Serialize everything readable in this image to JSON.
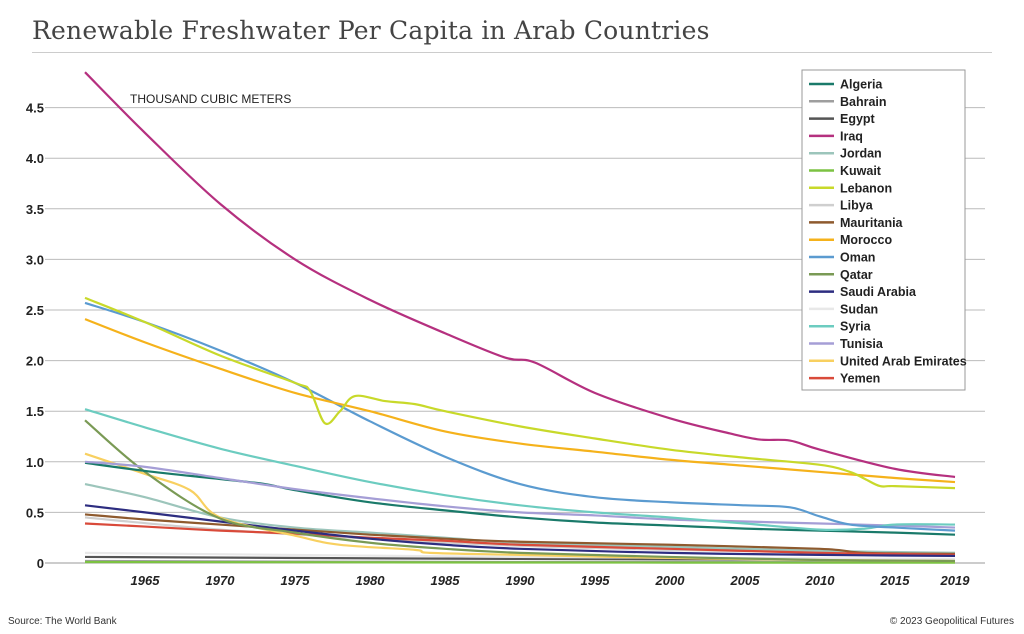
{
  "title": "Renewable Freshwater Per Capita in Arab Countries",
  "source": "Source: The World Bank",
  "copyright": "© 2023 Geopolitical Futures",
  "chart_data": {
    "type": "line",
    "title": "Renewable Freshwater Per Capita in Arab Countries",
    "ylabel": "THOUSAND CUBIC METERS",
    "xlabel": "",
    "xlim": [
      1961,
      2019
    ],
    "ylim": [
      0,
      4.9
    ],
    "x_ticks": [
      "1965",
      "1970",
      "1975",
      "1980",
      "1985",
      "1990",
      "1995",
      "2000",
      "2005",
      "2010",
      "2015",
      "2019"
    ],
    "y_ticks": [
      "0",
      "0.5",
      "1.0",
      "1.5",
      "2.0",
      "2.5",
      "3.0",
      "3.5",
      "4.0",
      "4.5"
    ],
    "grid": true,
    "legend": "top-right",
    "series": [
      {
        "name": "Algeria",
        "color": "#1a7a6a",
        "points": [
          [
            1961,
            0.99
          ],
          [
            1965,
            0.91
          ],
          [
            1970,
            0.83
          ],
          [
            1973,
            0.78
          ],
          [
            1975,
            0.72
          ],
          [
            1980,
            0.6
          ],
          [
            1985,
            0.52
          ],
          [
            1990,
            0.45
          ],
          [
            1995,
            0.4
          ],
          [
            2000,
            0.37
          ],
          [
            2005,
            0.34
          ],
          [
            2010,
            0.32
          ],
          [
            2015,
            0.3
          ],
          [
            2019,
            0.28
          ]
        ]
      },
      {
        "name": "Bahrain",
        "color": "#9e9e9e",
        "points": [
          [
            1961,
            0.02
          ],
          [
            1990,
            0.01
          ],
          [
            2019,
            0.01
          ]
        ]
      },
      {
        "name": "Egypt",
        "color": "#555555",
        "points": [
          [
            1961,
            0.06
          ],
          [
            1990,
            0.04
          ],
          [
            2019,
            0.03
          ]
        ]
      },
      {
        "name": "Iraq",
        "color": "#b5307f",
        "points": [
          [
            1961,
            4.85
          ],
          [
            1965,
            4.25
          ],
          [
            1970,
            3.55
          ],
          [
            1975,
            3.0
          ],
          [
            1980,
            2.6
          ],
          [
            1985,
            2.27
          ],
          [
            1989,
            2.03
          ],
          [
            1991,
            1.98
          ],
          [
            1995,
            1.68
          ],
          [
            2000,
            1.43
          ],
          [
            2004,
            1.28
          ],
          [
            2006,
            1.22
          ],
          [
            2008,
            1.21
          ],
          [
            2010,
            1.12
          ],
          [
            2015,
            0.93
          ],
          [
            2019,
            0.85
          ]
        ]
      },
      {
        "name": "Jordan",
        "color": "#9cc5bb",
        "points": [
          [
            1961,
            0.78
          ],
          [
            1965,
            0.65
          ],
          [
            1970,
            0.45
          ],
          [
            1975,
            0.35
          ],
          [
            1980,
            0.3
          ],
          [
            1985,
            0.25
          ],
          [
            1990,
            0.2
          ],
          [
            2000,
            0.16
          ],
          [
            2010,
            0.12
          ],
          [
            2019,
            0.1
          ]
        ]
      },
      {
        "name": "Kuwait",
        "color": "#7cc242",
        "points": [
          [
            1961,
            0.01
          ],
          [
            1990,
            0.005
          ],
          [
            2019,
            0.003
          ]
        ]
      },
      {
        "name": "Lebanon",
        "color": "#c8d92a",
        "points": [
          [
            1961,
            2.62
          ],
          [
            1965,
            2.38
          ],
          [
            1970,
            2.05
          ],
          [
            1975,
            1.78
          ],
          [
            1976,
            1.7
          ],
          [
            1977,
            1.38
          ],
          [
            1978,
            1.5
          ],
          [
            1979,
            1.65
          ],
          [
            1981,
            1.6
          ],
          [
            1983,
            1.57
          ],
          [
            1985,
            1.5
          ],
          [
            1990,
            1.35
          ],
          [
            1995,
            1.23
          ],
          [
            2000,
            1.12
          ],
          [
            2005,
            1.04
          ],
          [
            2010,
            0.97
          ],
          [
            2012,
            0.9
          ],
          [
            2013,
            0.83
          ],
          [
            2014,
            0.76
          ],
          [
            2015,
            0.76
          ],
          [
            2019,
            0.74
          ]
        ]
      },
      {
        "name": "Libya",
        "color": "#cfcfcf",
        "points": [
          [
            1961,
            0.45
          ],
          [
            1970,
            0.33
          ],
          [
            1980,
            0.24
          ],
          [
            1990,
            0.17
          ],
          [
            2000,
            0.13
          ],
          [
            2010,
            0.11
          ],
          [
            2019,
            0.1
          ]
        ]
      },
      {
        "name": "Mauritania",
        "color": "#8e5a2e",
        "points": [
          [
            1961,
            0.48
          ],
          [
            1965,
            0.43
          ],
          [
            1970,
            0.38
          ],
          [
            1975,
            0.33
          ],
          [
            1980,
            0.28
          ],
          [
            1985,
            0.24
          ],
          [
            1990,
            0.21
          ],
          [
            2000,
            0.18
          ],
          [
            2010,
            0.14
          ],
          [
            2013,
            0.1
          ],
          [
            2019,
            0.09
          ]
        ]
      },
      {
        "name": "Morocco",
        "color": "#f5b21b",
        "points": [
          [
            1961,
            2.41
          ],
          [
            1965,
            2.18
          ],
          [
            1970,
            1.92
          ],
          [
            1975,
            1.68
          ],
          [
            1980,
            1.5
          ],
          [
            1985,
            1.3
          ],
          [
            1990,
            1.18
          ],
          [
            1995,
            1.1
          ],
          [
            2000,
            1.02
          ],
          [
            2005,
            0.96
          ],
          [
            2010,
            0.9
          ],
          [
            2015,
            0.84
          ],
          [
            2019,
            0.8
          ]
        ]
      },
      {
        "name": "Oman",
        "color": "#5b9bd0",
        "points": [
          [
            1961,
            2.57
          ],
          [
            1965,
            2.38
          ],
          [
            1970,
            2.1
          ],
          [
            1975,
            1.78
          ],
          [
            1980,
            1.4
          ],
          [
            1985,
            1.05
          ],
          [
            1990,
            0.78
          ],
          [
            1995,
            0.65
          ],
          [
            2000,
            0.6
          ],
          [
            2005,
            0.57
          ],
          [
            2008,
            0.55
          ],
          [
            2010,
            0.46
          ],
          [
            2012,
            0.38
          ],
          [
            2015,
            0.35
          ],
          [
            2019,
            0.32
          ]
        ]
      },
      {
        "name": "Qatar",
        "color": "#7a9a55",
        "points": [
          [
            1961,
            1.41
          ],
          [
            1965,
            0.9
          ],
          [
            1970,
            0.44
          ],
          [
            1975,
            0.3
          ],
          [
            1980,
            0.2
          ],
          [
            1985,
            0.14
          ],
          [
            1990,
            0.1
          ],
          [
            2000,
            0.06
          ],
          [
            2010,
            0.03
          ],
          [
            2019,
            0.02
          ]
        ]
      },
      {
        "name": "Saudi Arabia",
        "color": "#2d2d80",
        "points": [
          [
            1961,
            0.57
          ],
          [
            1965,
            0.5
          ],
          [
            1970,
            0.41
          ],
          [
            1975,
            0.32
          ],
          [
            1980,
            0.24
          ],
          [
            1985,
            0.18
          ],
          [
            1990,
            0.14
          ],
          [
            2000,
            0.1
          ],
          [
            2010,
            0.08
          ],
          [
            2019,
            0.07
          ]
        ]
      },
      {
        "name": "Sudan",
        "color": "#e8e8e8",
        "points": [
          [
            1961,
            0.1
          ],
          [
            1990,
            0.06
          ],
          [
            2019,
            0.04
          ]
        ]
      },
      {
        "name": "Syria",
        "color": "#6cccc0",
        "points": [
          [
            1961,
            1.52
          ],
          [
            1965,
            1.34
          ],
          [
            1970,
            1.13
          ],
          [
            1975,
            0.96
          ],
          [
            1980,
            0.8
          ],
          [
            1985,
            0.67
          ],
          [
            1990,
            0.57
          ],
          [
            1995,
            0.5
          ],
          [
            2000,
            0.45
          ],
          [
            2005,
            0.39
          ],
          [
            2010,
            0.33
          ],
          [
            2013,
            0.34
          ],
          [
            2015,
            0.38
          ],
          [
            2019,
            0.38
          ]
        ]
      },
      {
        "name": "Tunisia",
        "color": "#a59ed6",
        "points": [
          [
            1961,
            1.0
          ],
          [
            1965,
            0.95
          ],
          [
            1970,
            0.84
          ],
          [
            1975,
            0.73
          ],
          [
            1980,
            0.64
          ],
          [
            1985,
            0.56
          ],
          [
            1990,
            0.5
          ],
          [
            1995,
            0.47
          ],
          [
            2000,
            0.43
          ],
          [
            2005,
            0.41
          ],
          [
            2010,
            0.39
          ],
          [
            2015,
            0.37
          ],
          [
            2019,
            0.35
          ]
        ]
      },
      {
        "name": "United Arab Emirates",
        "color": "#f8d060",
        "points": [
          [
            1961,
            1.08
          ],
          [
            1965,
            0.88
          ],
          [
            1968,
            0.72
          ],
          [
            1970,
            0.45
          ],
          [
            1975,
            0.27
          ],
          [
            1978,
            0.18
          ],
          [
            1983,
            0.13
          ],
          [
            1984,
            0.1
          ],
          [
            1990,
            0.08
          ],
          [
            2000,
            0.05
          ],
          [
            2010,
            0.03
          ],
          [
            2019,
            0.02
          ]
        ]
      },
      {
        "name": "Yemen",
        "color": "#d94a3a",
        "points": [
          [
            1961,
            0.39
          ],
          [
            1965,
            0.36
          ],
          [
            1970,
            0.32
          ],
          [
            1975,
            0.29
          ],
          [
            1980,
            0.25
          ],
          [
            1985,
            0.22
          ],
          [
            1990,
            0.18
          ],
          [
            2000,
            0.14
          ],
          [
            2010,
            0.1
          ],
          [
            2019,
            0.08
          ]
        ]
      }
    ]
  }
}
